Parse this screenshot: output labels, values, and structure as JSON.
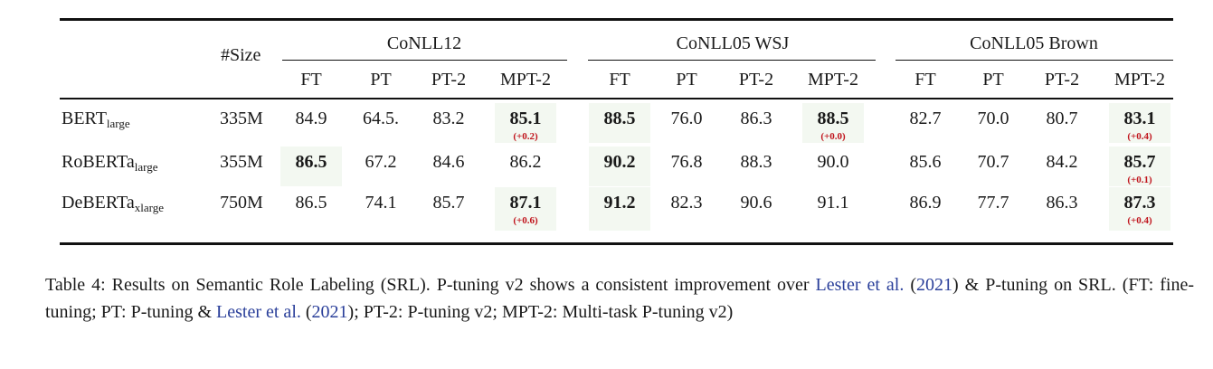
{
  "header": {
    "size_label": "#Size",
    "groups": [
      "CoNLL12",
      "CoNLL05 WSJ",
      "CoNLL05 Brown"
    ],
    "methods": [
      "FT",
      "PT",
      "PT-2",
      "MPT-2"
    ]
  },
  "rows": [
    {
      "model": "BERT",
      "model_sub": "large",
      "size": "335M",
      "values": [
        "84.9",
        "64.5.",
        "83.2",
        "85.1",
        "88.5",
        "76.0",
        "86.3",
        "88.5",
        "82.7",
        "70.0",
        "80.7",
        "83.1"
      ],
      "bold": [
        3,
        4,
        7,
        11
      ],
      "deltas": {
        "3": "(+0.2)",
        "7": "(+0.0)",
        "11": "(+0.4)"
      }
    },
    {
      "model": "RoBERTa",
      "model_sub": "large",
      "size": "355M",
      "values": [
        "86.5",
        "67.2",
        "84.6",
        "86.2",
        "90.2",
        "76.8",
        "88.3",
        "90.0",
        "85.6",
        "70.7",
        "84.2",
        "85.7"
      ],
      "bold": [
        0,
        4,
        11
      ],
      "deltas": {
        "11": "(+0.1)"
      }
    },
    {
      "model": "DeBERTa",
      "model_sub": "xlarge",
      "size": "750M",
      "values": [
        "86.5",
        "74.1",
        "85.7",
        "87.1",
        "91.2",
        "82.3",
        "90.6",
        "91.1",
        "86.9",
        "77.7",
        "86.3",
        "87.3"
      ],
      "bold": [
        3,
        4,
        11
      ],
      "deltas": {
        "3": "(+0.6)",
        "11": "(+0.4)"
      }
    }
  ],
  "caption": {
    "part1": "Table 4: Results on Semantic Role Labeling (SRL). P-tuning v2 shows a consistent improvement over ",
    "link1": "Lester et al.",
    "part2": " (",
    "link2": "2021",
    "part3": ") & P-tuning on SRL. (FT: fine-tuning; PT: P-tuning & ",
    "link3": "Lester et al.",
    "part4": " (",
    "link4": "2021",
    "part5": "); PT-2: P-tuning v2; MPT-2: Multi-task P-tuning v2)"
  },
  "colors": {
    "delta": "#c0141c",
    "link": "#2a3f9a"
  }
}
